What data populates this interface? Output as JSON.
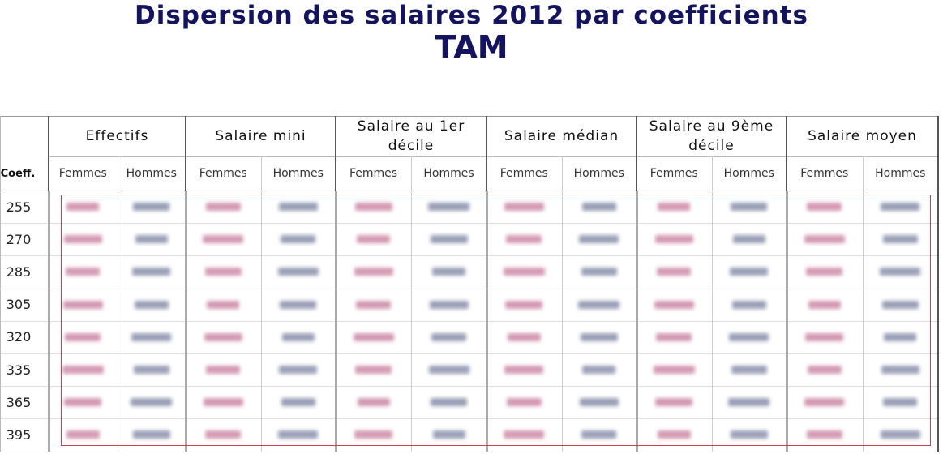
{
  "header": {
    "title": "Dispersion des salaires 2012 par coefficients",
    "subtitle": "TAM"
  },
  "table": {
    "row_header": "Coeff.",
    "groups": [
      "Effectifs",
      "Salaire mini",
      "Salaire au 1er décile",
      "Salaire médian",
      "Salaire au 9ème décile",
      "Salaire moyen"
    ],
    "subcolumns": [
      "Femmes",
      "Hommes"
    ],
    "rows": [
      "255",
      "270",
      "285",
      "305",
      "320",
      "335",
      "365",
      "395"
    ]
  }
}
